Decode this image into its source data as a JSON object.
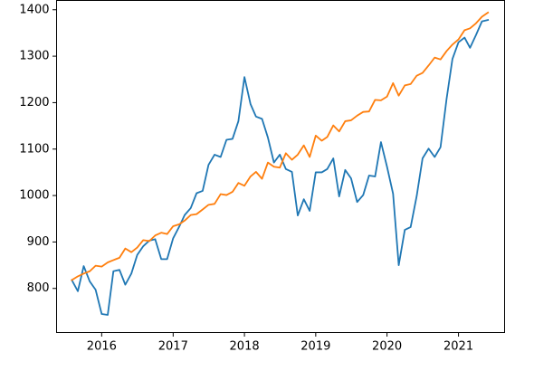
{
  "chart_data": {
    "type": "line",
    "title": "",
    "xlabel": "",
    "ylabel": "",
    "x_range": [
      "2015-05-15",
      "2021-08-25"
    ],
    "ylim": [
      705,
      1420
    ],
    "grid": false,
    "legend": "none",
    "x_ticks": [
      {
        "date": "2016-01-01",
        "label": "2016"
      },
      {
        "date": "2017-01-01",
        "label": "2017"
      },
      {
        "date": "2018-01-01",
        "label": "2018"
      },
      {
        "date": "2019-01-01",
        "label": "2019"
      },
      {
        "date": "2020-01-01",
        "label": "2020"
      },
      {
        "date": "2021-01-01",
        "label": "2021"
      }
    ],
    "y_ticks": [
      800,
      900,
      1000,
      1100,
      1200,
      1300,
      1400
    ],
    "x": [
      "2015-08",
      "2015-09",
      "2015-10",
      "2015-11",
      "2015-12",
      "2016-01",
      "2016-02",
      "2016-03",
      "2016-04",
      "2016-05",
      "2016-06",
      "2016-07",
      "2016-08",
      "2016-09",
      "2016-10",
      "2016-11",
      "2016-12",
      "2017-01",
      "2017-02",
      "2017-03",
      "2017-04",
      "2017-05",
      "2017-06",
      "2017-07",
      "2017-08",
      "2017-09",
      "2017-10",
      "2017-11",
      "2017-12",
      "2018-01",
      "2018-02",
      "2018-03",
      "2018-04",
      "2018-05",
      "2018-06",
      "2018-07",
      "2018-08",
      "2018-09",
      "2018-10",
      "2018-11",
      "2018-12",
      "2019-01",
      "2019-02",
      "2019-03",
      "2019-04",
      "2019-05",
      "2019-06",
      "2019-07",
      "2019-08",
      "2019-09",
      "2019-10",
      "2019-11",
      "2019-12",
      "2020-01",
      "2020-02",
      "2020-03",
      "2020-04",
      "2020-05",
      "2020-06",
      "2020-07",
      "2020-08",
      "2020-09",
      "2020-10",
      "2020-11",
      "2020-12",
      "2021-01",
      "2021-02",
      "2021-03",
      "2021-04",
      "2021-05",
      "2021-06"
    ],
    "series": [
      {
        "color": "#1f77b4",
        "values": [
          818,
          794,
          848,
          815,
          797,
          745,
          743,
          837,
          840,
          808,
          832,
          872,
          891,
          903,
          906,
          863,
          863,
          908,
          933,
          958,
          973,
          1005,
          1010,
          1066,
          1088,
          1083,
          1120,
          1122,
          1160,
          1255,
          1197,
          1170,
          1165,
          1125,
          1071,
          1088,
          1057,
          1051,
          957,
          992,
          967,
          1050,
          1050,
          1057,
          1080,
          998,
          1055,
          1037,
          986,
          1001,
          1043,
          1041,
          1115,
          1062,
          1004,
          850,
          926,
          932,
          999,
          1080,
          1101,
          1083,
          1104,
          1208,
          1294,
          1330,
          1340,
          1318,
          1346,
          1375,
          1378
        ]
      },
      {
        "color": "#ff7f0e",
        "values": [
          818,
          826,
          832,
          837,
          849,
          847,
          856,
          861,
          866,
          886,
          878,
          888,
          904,
          902,
          914,
          920,
          917,
          934,
          938,
          946,
          958,
          960,
          970,
          980,
          982,
          1003,
          1001,
          1008,
          1027,
          1021,
          1041,
          1051,
          1036,
          1071,
          1062,
          1060,
          1091,
          1077,
          1088,
          1108,
          1083,
          1129,
          1118,
          1126,
          1151,
          1138,
          1160,
          1162,
          1172,
          1180,
          1181,
          1206,
          1205,
          1213,
          1242,
          1215,
          1237,
          1240,
          1258,
          1264,
          1280,
          1297,
          1293,
          1311,
          1325,
          1336,
          1356,
          1360,
          1371,
          1385,
          1394
        ]
      }
    ]
  }
}
